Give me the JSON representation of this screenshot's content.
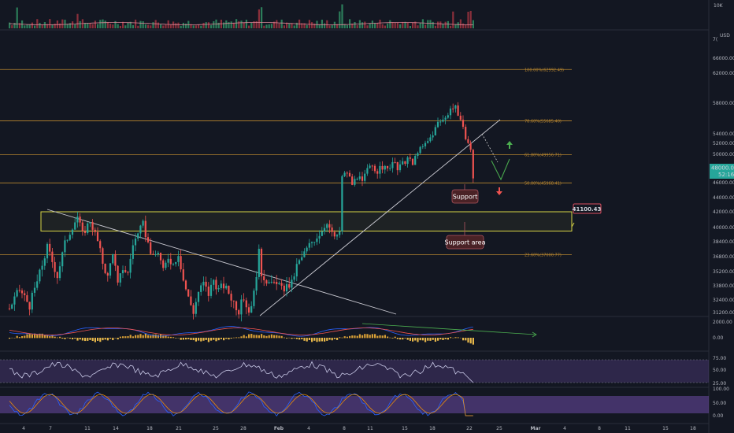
{
  "chart_data": {
    "type": "candlestick",
    "symbol_currency": "USD",
    "volume_axis_label": "10K",
    "price_axis": {
      "ticks": [
        "66000.00",
        "62000.00",
        "58000.00",
        "54000.00",
        "52000.00",
        "50000.00",
        "46000.00",
        "44000.00",
        "42000.00",
        "40000.00",
        "38400.00",
        "36800.00",
        "35200.00",
        "33800.00",
        "32400.00",
        "31200.00"
      ],
      "partial_top_label": "7(",
      "current_price": "48000.00",
      "countdown": "52:16"
    },
    "date_axis": {
      "ticks": [
        "4",
        "7",
        "11",
        "14",
        "18",
        "21",
        "25",
        "28",
        "Feb",
        "4",
        "8",
        "11",
        "15",
        "18",
        "22",
        "25",
        "Mar",
        "4",
        "8",
        "11",
        "15",
        "18"
      ]
    },
    "fib_levels": [
      {
        "label": "100.00%(62992.49)",
        "price": 62992.49
      },
      {
        "label": "78.60%(55685.40)",
        "price": 55685.4
      },
      {
        "label": "61.80%(49956.71)",
        "price": 49956.71
      },
      {
        "label": "50.00%(45968.41)",
        "price": 45968.41
      },
      {
        "label": "23.60%(37000.77)",
        "price": 37000.77
      }
    ],
    "zone": {
      "label": "41100.43",
      "top": 42000,
      "bottom": 39600
    },
    "annotations": [
      "Support",
      "Support area"
    ],
    "price_path": [
      [
        0,
        31600
      ],
      [
        4,
        33400
      ],
      [
        8,
        31900
      ],
      [
        12,
        35000
      ],
      [
        15,
        37800
      ],
      [
        19,
        34800
      ],
      [
        22,
        38200
      ],
      [
        25,
        40200
      ],
      [
        27,
        41400
      ],
      [
        29,
        39200
      ],
      [
        32,
        40900
      ],
      [
        35,
        38400
      ],
      [
        37,
        36200
      ],
      [
        39,
        34600
      ],
      [
        41,
        37400
      ],
      [
        43,
        33800
      ],
      [
        45,
        35600
      ],
      [
        47,
        35000
      ],
      [
        49,
        38200
      ],
      [
        51,
        39200
      ],
      [
        53,
        40400
      ],
      [
        55,
        38200
      ],
      [
        57,
        36600
      ],
      [
        59,
        37400
      ],
      [
        61,
        35200
      ],
      [
        63,
        36800
      ],
      [
        65,
        36000
      ],
      [
        67,
        37200
      ],
      [
        69,
        34400
      ],
      [
        71,
        32600
      ],
      [
        73,
        31300
      ],
      [
        75,
        33200
      ],
      [
        77,
        34000
      ],
      [
        79,
        33000
      ],
      [
        81,
        34400
      ],
      [
        83,
        33400
      ],
      [
        85,
        33800
      ],
      [
        87,
        33100
      ],
      [
        89,
        32200
      ],
      [
        91,
        31400
      ],
      [
        93,
        32600
      ],
      [
        95,
        31300
      ],
      [
        97,
        33000
      ],
      [
        99,
        37200
      ],
      [
        100,
        35000
      ],
      [
        102,
        34400
      ],
      [
        104,
        33800
      ],
      [
        106,
        34300
      ],
      [
        108,
        33400
      ],
      [
        110,
        33700
      ],
      [
        112,
        34000
      ],
      [
        114,
        35800
      ],
      [
        116,
        36700
      ],
      [
        118,
        37600
      ],
      [
        120,
        38400
      ],
      [
        122,
        39000
      ],
      [
        124,
        39700
      ],
      [
        126,
        40800
      ],
      [
        128,
        39200
      ],
      [
        130,
        38800
      ],
      [
        131,
        39600
      ],
      [
        132,
        46800
      ],
      [
        134,
        47500
      ],
      [
        136,
        45800
      ],
      [
        138,
        46900
      ],
      [
        140,
        46000
      ],
      [
        142,
        47800
      ],
      [
        144,
        48400
      ],
      [
        146,
        47600
      ],
      [
        148,
        48200
      ],
      [
        150,
        47800
      ],
      [
        152,
        49000
      ],
      [
        154,
        47900
      ],
      [
        156,
        48600
      ],
      [
        158,
        49500
      ],
      [
        160,
        48500
      ],
      [
        162,
        50600
      ],
      [
        164,
        51300
      ],
      [
        166,
        52400
      ],
      [
        168,
        54000
      ],
      [
        170,
        55400
      ],
      [
        172,
        55800
      ],
      [
        174,
        56800
      ],
      [
        175,
        57400
      ],
      [
        176,
        57200
      ],
      [
        177,
        58000
      ],
      [
        178,
        56400
      ],
      [
        180,
        54500
      ],
      [
        182,
        52100
      ],
      [
        183,
        50600
      ],
      [
        184,
        46800
      ]
    ]
  }
}
